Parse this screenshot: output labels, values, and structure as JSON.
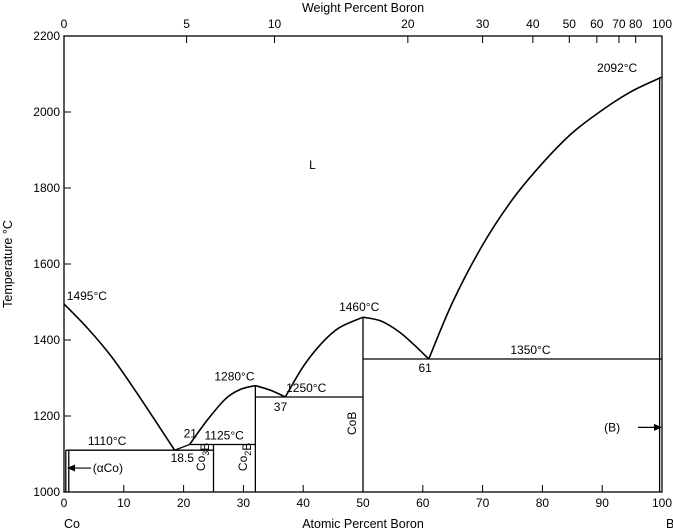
{
  "chart_data": {
    "type": "line",
    "title": "",
    "xlabel": "Atomic Percent Boron",
    "ylabel": "Temperature °C",
    "top_xlabel": "Weight Percent Boron",
    "xlim": [
      0,
      100
    ],
    "ylim": [
      1000,
      2200
    ],
    "x_ticks": [
      0,
      10,
      20,
      30,
      40,
      50,
      60,
      70,
      80,
      90,
      100
    ],
    "y_ticks": [
      1000,
      1200,
      1400,
      1600,
      1800,
      2000,
      2200
    ],
    "top_ticks": [
      {
        "label": "0",
        "at": 0
      },
      {
        "label": "5",
        "at": 20.5
      },
      {
        "label": "10",
        "at": 35.2
      },
      {
        "label": "20",
        "at": 57.5
      },
      {
        "label": "30",
        "at": 70
      },
      {
        "label": "40",
        "at": 78.4
      },
      {
        "label": "50",
        "at": 84.5
      },
      {
        "label": "60",
        "at": 89.1
      },
      {
        "label": "70",
        "at": 92.8
      },
      {
        "label": "80",
        "at": 95.6
      },
      {
        "label": "100",
        "at": 100
      }
    ],
    "end_labels": {
      "left": "Co",
      "right": "B"
    },
    "series": [
      {
        "points": [
          [
            0,
            1495
          ],
          [
            4,
            1430
          ],
          [
            8,
            1355
          ],
          [
            12,
            1265
          ],
          [
            16,
            1170
          ],
          [
            18.5,
            1110
          ]
        ]
      },
      {
        "points": [
          [
            18.5,
            1110
          ],
          [
            21,
            1125
          ]
        ]
      },
      {
        "points": [
          [
            21,
            1125
          ],
          [
            24,
            1190
          ],
          [
            27,
            1245
          ],
          [
            29.5,
            1270
          ],
          [
            32,
            1280
          ]
        ]
      },
      {
        "points": [
          [
            32,
            1280
          ],
          [
            34.5,
            1268
          ],
          [
            37,
            1250
          ]
        ]
      },
      {
        "points": [
          [
            37,
            1250
          ],
          [
            40,
            1330
          ],
          [
            43,
            1390
          ],
          [
            46,
            1432
          ],
          [
            50,
            1460
          ]
        ]
      },
      {
        "points": [
          [
            50,
            1460
          ],
          [
            53,
            1450
          ],
          [
            56,
            1422
          ],
          [
            58.5,
            1388
          ],
          [
            61,
            1350
          ]
        ]
      },
      {
        "points": [
          [
            61,
            1350
          ],
          [
            65,
            1500
          ],
          [
            70,
            1650
          ],
          [
            75,
            1770
          ],
          [
            80,
            1865
          ],
          [
            85,
            1945
          ],
          [
            90,
            2005
          ],
          [
            95,
            2055
          ],
          [
            100,
            2092
          ]
        ]
      },
      {
        "points": [
          [
            0.8,
            1000
          ],
          [
            0.8,
            1110
          ]
        ]
      },
      {
        "points": [
          [
            0.3,
            1000
          ],
          [
            0.3,
            1110
          ]
        ]
      },
      {
        "points": [
          [
            25,
            1000
          ],
          [
            25,
            1125
          ]
        ]
      },
      {
        "points": [
          [
            32,
            1000
          ],
          [
            32,
            1280
          ]
        ]
      },
      {
        "points": [
          [
            50,
            1000
          ],
          [
            50,
            1460
          ]
        ]
      },
      {
        "points": [
          [
            99.6,
            1000
          ],
          [
            99.6,
            2092
          ]
        ]
      },
      {
        "points": [
          [
            0.3,
            1110
          ],
          [
            25,
            1110
          ]
        ]
      },
      {
        "points": [
          [
            21,
            1125
          ],
          [
            32,
            1125
          ]
        ]
      },
      {
        "points": [
          [
            32,
            1250
          ],
          [
            50,
            1250
          ]
        ]
      },
      {
        "points": [
          [
            50,
            1350
          ],
          [
            100,
            1350
          ]
        ]
      }
    ],
    "annotations": [
      {
        "text": "1495°C",
        "x": 0.3,
        "y": 1495
      },
      {
        "text": "1110°C",
        "x": 4,
        "y": 1110
      },
      {
        "text": "21",
        "x": 20,
        "y": 1125
      },
      {
        "text": "18.5",
        "x": 18,
        "y": 1110
      },
      {
        "text": "1125°C",
        "x": 23.5,
        "y": 1125
      },
      {
        "text": "1280°C",
        "x": 28.5,
        "y": 1280
      },
      {
        "text": "37",
        "x": 36.2,
        "y": 1250
      },
      {
        "text": "1250°C",
        "x": 40.5,
        "y": 1250
      },
      {
        "text": "1460°C",
        "x": 46,
        "y": 1460
      },
      {
        "text": "61",
        "x": 60.4,
        "y": 1350
      },
      {
        "text": "1350°C",
        "x": 78,
        "y": 1350
      },
      {
        "text": "2092°C",
        "x": 92.5,
        "y": 2092
      },
      {
        "text": "L",
        "x": 41,
        "y": 1860
      },
      {
        "text": "(αCo)",
        "x": 4.8,
        "y": 1063
      },
      {
        "text": "(B)",
        "x": 93,
        "y": 1170
      }
    ],
    "vertical_labels": [
      {
        "text": "Co3B",
        "x": 23.6,
        "y": 1055
      },
      {
        "text": "Co2B",
        "x": 30.6,
        "y": 1055
      },
      {
        "text": "CoB",
        "x": 48.8,
        "y": 1150
      }
    ],
    "arrows": [
      {
        "direction": "left",
        "x": 0.5,
        "y": 1063
      },
      {
        "direction": "right",
        "x": 100,
        "y": 1170
      }
    ],
    "grid": false,
    "legend": "none"
  }
}
